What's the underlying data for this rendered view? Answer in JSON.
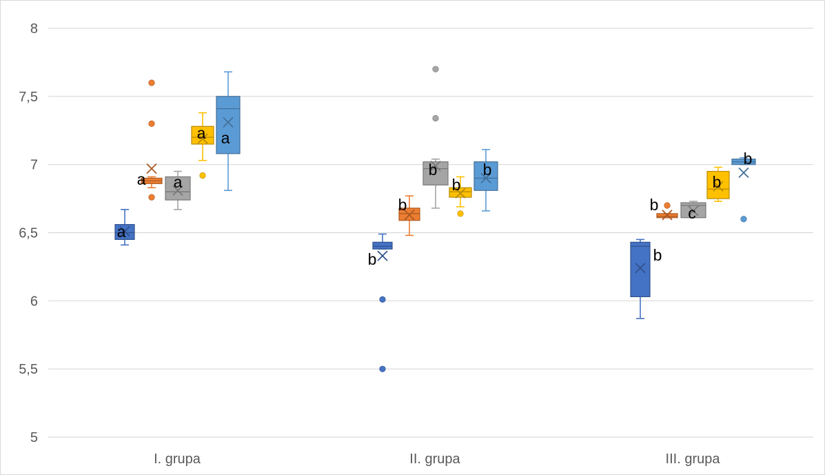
{
  "chart_data": {
    "type": "box",
    "title": "",
    "xlabel": "",
    "ylabel": "",
    "ylim": [
      5,
      8
    ],
    "yticks": [
      {
        "value": 5,
        "label": "5"
      },
      {
        "value": 5.5,
        "label": "5,5"
      },
      {
        "value": 6,
        "label": "6"
      },
      {
        "value": 6.5,
        "label": "6,5"
      },
      {
        "value": 7,
        "label": "7"
      },
      {
        "value": 7.5,
        "label": "7,5"
      },
      {
        "value": 8,
        "label": "8"
      }
    ],
    "grid": true,
    "legend": "none",
    "categories": [
      "I. grupa",
      "II. grupa",
      "III. grupa"
    ],
    "series_colors": [
      "#4472c4",
      "#ed7d31",
      "#a5a5a5",
      "#ffc000",
      "#5b9bd5"
    ],
    "groups": [
      {
        "category": "I. grupa",
        "boxes": [
          {
            "series": 0,
            "min": 6.41,
            "q1": 6.45,
            "median": 6.5,
            "q3": 6.56,
            "max": 6.67,
            "mean": 6.51,
            "outliers": [],
            "letter": "a"
          },
          {
            "series": 1,
            "min": 6.83,
            "q1": 6.86,
            "median": 6.88,
            "q3": 6.9,
            "max": 6.91,
            "mean": 6.97,
            "outliers": [
              7.6,
              7.3,
              6.76
            ],
            "letter": "a"
          },
          {
            "series": 2,
            "min": 6.67,
            "q1": 6.74,
            "median": 6.8,
            "q3": 6.91,
            "max": 6.95,
            "mean": 6.81,
            "outliers": [],
            "letter": "a"
          },
          {
            "series": 3,
            "min": 7.03,
            "q1": 7.15,
            "median": 7.2,
            "q3": 7.28,
            "max": 7.38,
            "mean": 7.19,
            "outliers": [
              6.92
            ],
            "letter": "a"
          },
          {
            "series": 4,
            "min": 6.81,
            "q1": 7.08,
            "median": 7.41,
            "q3": 7.5,
            "max": 7.68,
            "mean": 7.31,
            "outliers": [],
            "letter": "a"
          }
        ]
      },
      {
        "category": "II. grupa",
        "boxes": [
          {
            "series": 0,
            "min": 6.38,
            "q1": 6.38,
            "median": 6.4,
            "q3": 6.43,
            "max": 6.49,
            "mean": 6.33,
            "outliers": [
              6.01,
              5.5
            ],
            "letter": "b"
          },
          {
            "series": 1,
            "min": 6.48,
            "q1": 6.59,
            "median": 6.64,
            "q3": 6.68,
            "max": 6.77,
            "mean": 6.63,
            "outliers": [],
            "letter": "b"
          },
          {
            "series": 2,
            "min": 6.68,
            "q1": 6.85,
            "median": 6.97,
            "q3": 7.02,
            "max": 7.04,
            "mean": 6.99,
            "outliers": [
              7.7,
              7.34
            ],
            "letter": "b"
          },
          {
            "series": 3,
            "min": 6.69,
            "q1": 6.76,
            "median": 6.8,
            "q3": 6.83,
            "max": 6.91,
            "mean": 6.79,
            "outliers": [
              6.64
            ],
            "letter": "b"
          },
          {
            "series": 4,
            "min": 6.66,
            "q1": 6.81,
            "median": 6.9,
            "q3": 7.02,
            "max": 7.11,
            "mean": 6.9,
            "outliers": [],
            "letter": "b"
          }
        ]
      },
      {
        "category": "III. grupa",
        "boxes": [
          {
            "series": 0,
            "min": 5.87,
            "q1": 6.03,
            "median": 6.4,
            "q3": 6.43,
            "max": 6.45,
            "mean": 6.24,
            "outliers": [],
            "letter": "b"
          },
          {
            "series": 1,
            "min": 6.61,
            "q1": 6.61,
            "median": 6.62,
            "q3": 6.64,
            "max": 6.64,
            "mean": 6.63,
            "outliers": [
              6.7
            ],
            "letter": "b"
          },
          {
            "series": 2,
            "min": 6.61,
            "q1": 6.61,
            "median": 6.7,
            "q3": 6.72,
            "max": 6.73,
            "mean": 6.66,
            "outliers": [],
            "letter": "c"
          },
          {
            "series": 3,
            "min": 6.73,
            "q1": 6.75,
            "median": 6.82,
            "q3": 6.95,
            "max": 6.98,
            "mean": 6.84,
            "outliers": [],
            "letter": "b"
          },
          {
            "series": 4,
            "min": 7.0,
            "q1": 7.0,
            "median": 7.02,
            "q3": 7.04,
            "max": 7.05,
            "mean": 6.94,
            "outliers": [
              6.6
            ],
            "letter": "b"
          }
        ]
      }
    ]
  }
}
